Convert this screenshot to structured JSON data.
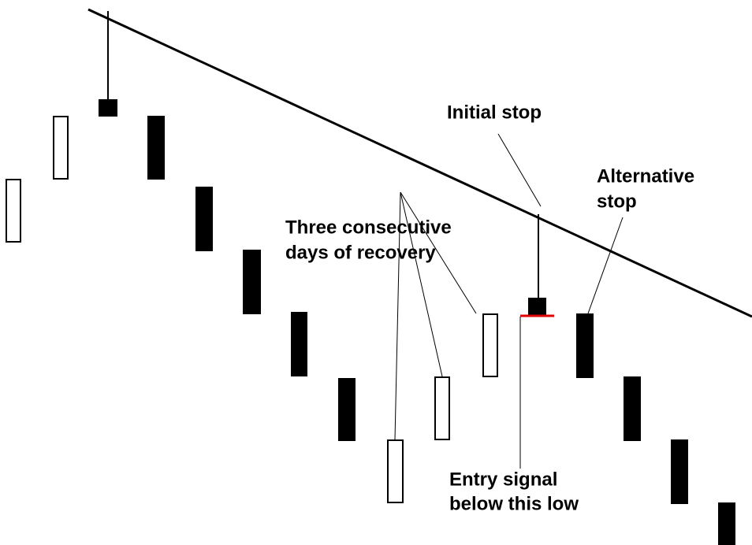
{
  "annotations": [
    {
      "lines": [
        "Initial stop"
      ]
    },
    {
      "lines": [
        "Alternative",
        "stop"
      ]
    },
    {
      "lines": [
        "Three consecutive",
        "days of recovery"
      ]
    },
    {
      "lines": [
        "Entry signal",
        "below this low"
      ]
    }
  ]
}
